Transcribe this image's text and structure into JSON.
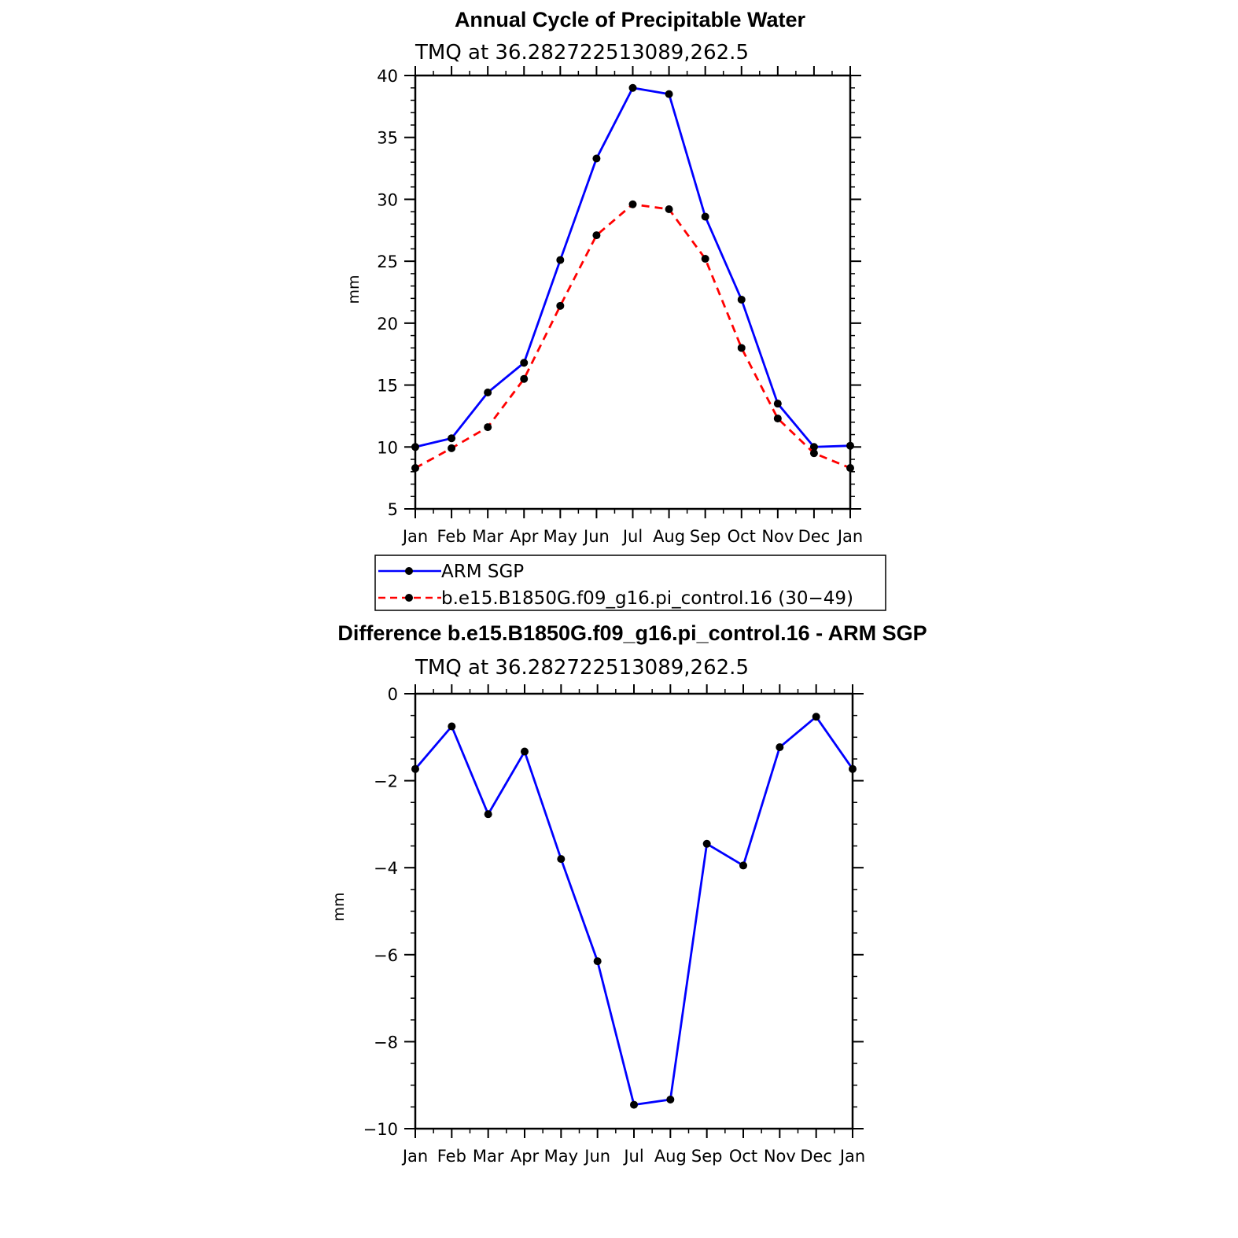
{
  "chart_data": [
    {
      "type": "line",
      "title": "Annual Cycle of Precipitable Water",
      "subtitle": "TMQ at 36.282722513089,262.5",
      "ylabel": "mm",
      "xlabel": "",
      "categories": [
        "Jan",
        "Feb",
        "Mar",
        "Apr",
        "May",
        "Jun",
        "Jul",
        "Aug",
        "Sep",
        "Oct",
        "Nov",
        "Dec",
        "Jan"
      ],
      "ylim": [
        5,
        40
      ],
      "yticks": [
        5,
        10,
        15,
        20,
        25,
        30,
        35,
        40
      ],
      "y_minor_step": 1,
      "grid": false,
      "legend_position": "bottom",
      "series": [
        {
          "name": "ARM SGP",
          "color": "#0000ff",
          "style": "solid",
          "marker": "circle",
          "values": [
            10.0,
            10.7,
            14.4,
            16.8,
            25.1,
            33.3,
            39.0,
            38.5,
            28.6,
            21.9,
            13.5,
            10.0,
            10.1
          ]
        },
        {
          "name": "b.e15.B1850G.f09_g16.pi_control.16 (30−49)",
          "color": "#ff0000",
          "style": "dashed",
          "marker": "circle",
          "values": [
            8.3,
            9.9,
            11.6,
            15.5,
            21.4,
            27.1,
            29.6,
            29.2,
            25.2,
            18.0,
            12.3,
            9.5,
            8.3
          ]
        }
      ]
    },
    {
      "type": "line",
      "title": "Difference b.e15.B1850G.f09_g16.pi_control.16 - ARM SGP",
      "subtitle": "TMQ at 36.282722513089,262.5",
      "ylabel": "mm",
      "xlabel": "",
      "categories": [
        "Jan",
        "Feb",
        "Mar",
        "Apr",
        "May",
        "Jun",
        "Jul",
        "Aug",
        "Sep",
        "Oct",
        "Nov",
        "Dec",
        "Jan"
      ],
      "ylim": [
        -10,
        0
      ],
      "yticks": [
        -10,
        -8,
        -6,
        -4,
        -2,
        0
      ],
      "ytick_labels": [
        "−10",
        "−8",
        "−6",
        "−4",
        "−2",
        "0"
      ],
      "y_minor_step": 0.5,
      "grid": false,
      "series": [
        {
          "name": "",
          "color": "#0000ff",
          "style": "solid",
          "marker": "circle",
          "values": [
            -1.73,
            -0.75,
            -2.77,
            -1.33,
            -3.8,
            -6.15,
            -9.45,
            -9.33,
            -3.45,
            -3.95,
            -1.23,
            -0.53,
            -1.73
          ]
        }
      ]
    }
  ]
}
